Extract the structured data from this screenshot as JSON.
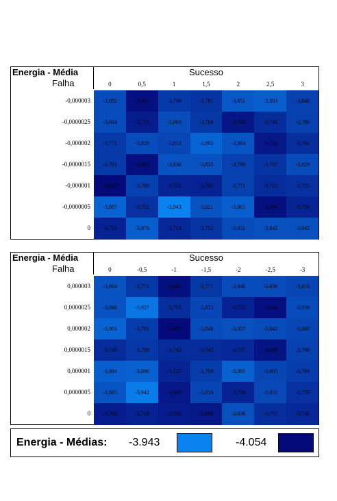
{
  "chart_data": [
    {
      "type": "heatmap",
      "corner_title": "Energia - Média",
      "corner_subtitle": "Falha",
      "column_title": "Sucesso",
      "columns": [
        "0",
        "0,5",
        "1",
        "1,5",
        "2",
        "2,5",
        "3"
      ],
      "rows": [
        "-0,000003",
        "-0,0000025",
        "-0,000002",
        "-0,0000015",
        "-0,000001",
        "-0,0000005",
        "0"
      ],
      "values": [
        [
          "-3,882",
          "-3,681",
          "-3,799",
          "-3,781",
          "-3,855",
          "-3,893",
          "-3,840"
        ],
        [
          "-3,844",
          "-3,711",
          "-3,860",
          "-3,768",
          "-3,704",
          "-3,740",
          "-3,786"
        ],
        [
          "-3,771",
          "-3,828",
          "-3,813",
          "-3,892",
          "-3,864",
          "-3,732",
          "-3,760"
        ],
        [
          "-3,791",
          "-3,683",
          "-3,836",
          "-3,835",
          "-3,799",
          "-3,767",
          "-3,829"
        ],
        [
          "-4,047",
          "-3,789",
          "-3,722",
          "-3,703",
          "-3,771",
          "-3,722",
          "-3,755"
        ],
        [
          "-3,887",
          "-3,752",
          "-3,943",
          "-3,821",
          "-3,861",
          "-3,698",
          "-3,736"
        ],
        [
          "-3,721",
          "-3,876",
          "-3,714",
          "-3,752",
          "-3,832",
          "-3,842",
          "-3,842"
        ]
      ],
      "shades": [
        [
          0.45,
          0.95,
          0.6,
          0.65,
          0.35,
          0.3,
          0.55
        ],
        [
          0.45,
          0.85,
          0.45,
          0.62,
          0.9,
          0.72,
          0.55
        ],
        [
          0.6,
          0.45,
          0.5,
          0.25,
          0.38,
          0.88,
          0.7
        ],
        [
          0.6,
          0.95,
          0.4,
          0.4,
          0.55,
          0.65,
          0.45
        ],
        [
          1.0,
          0.55,
          0.78,
          0.8,
          0.55,
          0.72,
          0.68
        ],
        [
          0.25,
          0.68,
          0.0,
          0.4,
          0.3,
          0.95,
          0.78
        ],
        [
          0.8,
          0.3,
          0.75,
          0.65,
          0.45,
          0.42,
          0.42
        ]
      ]
    },
    {
      "type": "heatmap",
      "corner_title": "Energia - Média",
      "corner_subtitle": "Falha",
      "column_title": "Sucesso",
      "columns": [
        "0",
        "-0,5",
        "-1",
        "-1,5",
        "-2",
        "-2,5",
        "-3"
      ],
      "rows": [
        "0,000003",
        "0,0000025",
        "0,000002",
        "0,0000015",
        "0,000001",
        "0,0000005",
        "0"
      ],
      "values": [
        [
          "-3,864",
          "-3,771",
          "-3,686",
          "-3,771",
          "-3,840",
          "-3,836",
          "-3,816"
        ],
        [
          "-3,866",
          "-3,927",
          "-3,753",
          "-3,823",
          "-3,732",
          "-3,688",
          "-3,839"
        ],
        [
          "-3,901",
          "-3,791",
          "-3,674",
          "-3,840",
          "-3,857",
          "-3,842",
          "-3,800"
        ],
        [
          "-3,749",
          "-3,788",
          "-3,742",
          "-3,743",
          "-3,737",
          "-3,699",
          "-3,796"
        ],
        [
          "-3,884",
          "-3,896",
          "-3,727",
          "-3,790",
          "-3,895",
          "-3,805",
          "-3,784"
        ],
        [
          "-3,865",
          "-3,942",
          "-3,693",
          "-3,816",
          "-3,728",
          "-3,831",
          "-3,755"
        ],
        [
          "-3,700",
          "-3,718",
          "-3,703",
          "-3,696",
          "-3,836",
          "-3,757",
          "-3,740"
        ]
      ],
      "shades": [
        [
          0.4,
          0.62,
          0.95,
          0.62,
          0.45,
          0.45,
          0.5
        ],
        [
          0.4,
          0.1,
          0.7,
          0.5,
          0.8,
          0.95,
          0.45
        ],
        [
          0.25,
          0.58,
          1.0,
          0.45,
          0.42,
          0.45,
          0.5
        ],
        [
          0.72,
          0.62,
          0.72,
          0.72,
          0.75,
          0.92,
          0.55
        ],
        [
          0.3,
          0.28,
          0.78,
          0.58,
          0.28,
          0.5,
          0.58
        ],
        [
          0.38,
          0.05,
          0.88,
          0.5,
          0.8,
          0.48,
          0.68
        ],
        [
          0.85,
          0.8,
          0.85,
          0.88,
          0.42,
          0.7,
          0.75
        ]
      ]
    }
  ],
  "legend": {
    "title": "Energia - Médias:",
    "min_label": "-3.943",
    "max_label": "-4.054",
    "min_color": "#0a82f0",
    "max_color": "#050a7a"
  }
}
